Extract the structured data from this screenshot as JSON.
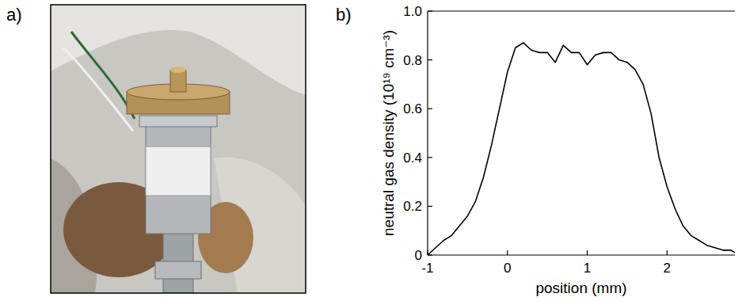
{
  "panel_labels": [
    "a)",
    "b)"
  ],
  "chart_data": {
    "type": "line",
    "x_label": "position (mm)",
    "y_label": "neutral gas density (10¹⁹ cm⁻³)",
    "x": [
      -1,
      -0.9,
      -0.8,
      -0.7,
      -0.6,
      -0.5,
      -0.4,
      -0.3,
      -0.2,
      -0.1,
      0,
      0.1,
      0.2,
      0.3,
      0.4,
      0.5,
      0.6,
      0.7,
      0.8,
      0.9,
      1.0,
      1.1,
      1.2,
      1.3,
      1.4,
      1.5,
      1.6,
      1.7,
      1.8,
      1.9,
      2.0,
      2.1,
      2.2,
      2.3,
      2.4,
      2.5,
      2.6,
      2.7,
      2.8,
      2.85
    ],
    "values": [
      0.0,
      0.03,
      0.06,
      0.08,
      0.12,
      0.16,
      0.22,
      0.32,
      0.45,
      0.6,
      0.75,
      0.85,
      0.87,
      0.84,
      0.83,
      0.83,
      0.79,
      0.86,
      0.83,
      0.83,
      0.78,
      0.82,
      0.83,
      0.83,
      0.8,
      0.79,
      0.76,
      0.7,
      0.58,
      0.4,
      0.28,
      0.19,
      0.12,
      0.08,
      0.06,
      0.04,
      0.03,
      0.02,
      0.02,
      0.01
    ],
    "color": "#000000",
    "xlim": [
      -1,
      2.85
    ],
    "ylim": [
      0,
      1
    ],
    "xticks": [
      -1,
      0,
      1,
      2
    ],
    "yticks": [
      0,
      0.2,
      0.4,
      0.6,
      0.8,
      {
        "value": 1,
        "label": "1.0"
      }
    ],
    "grid": false
  }
}
